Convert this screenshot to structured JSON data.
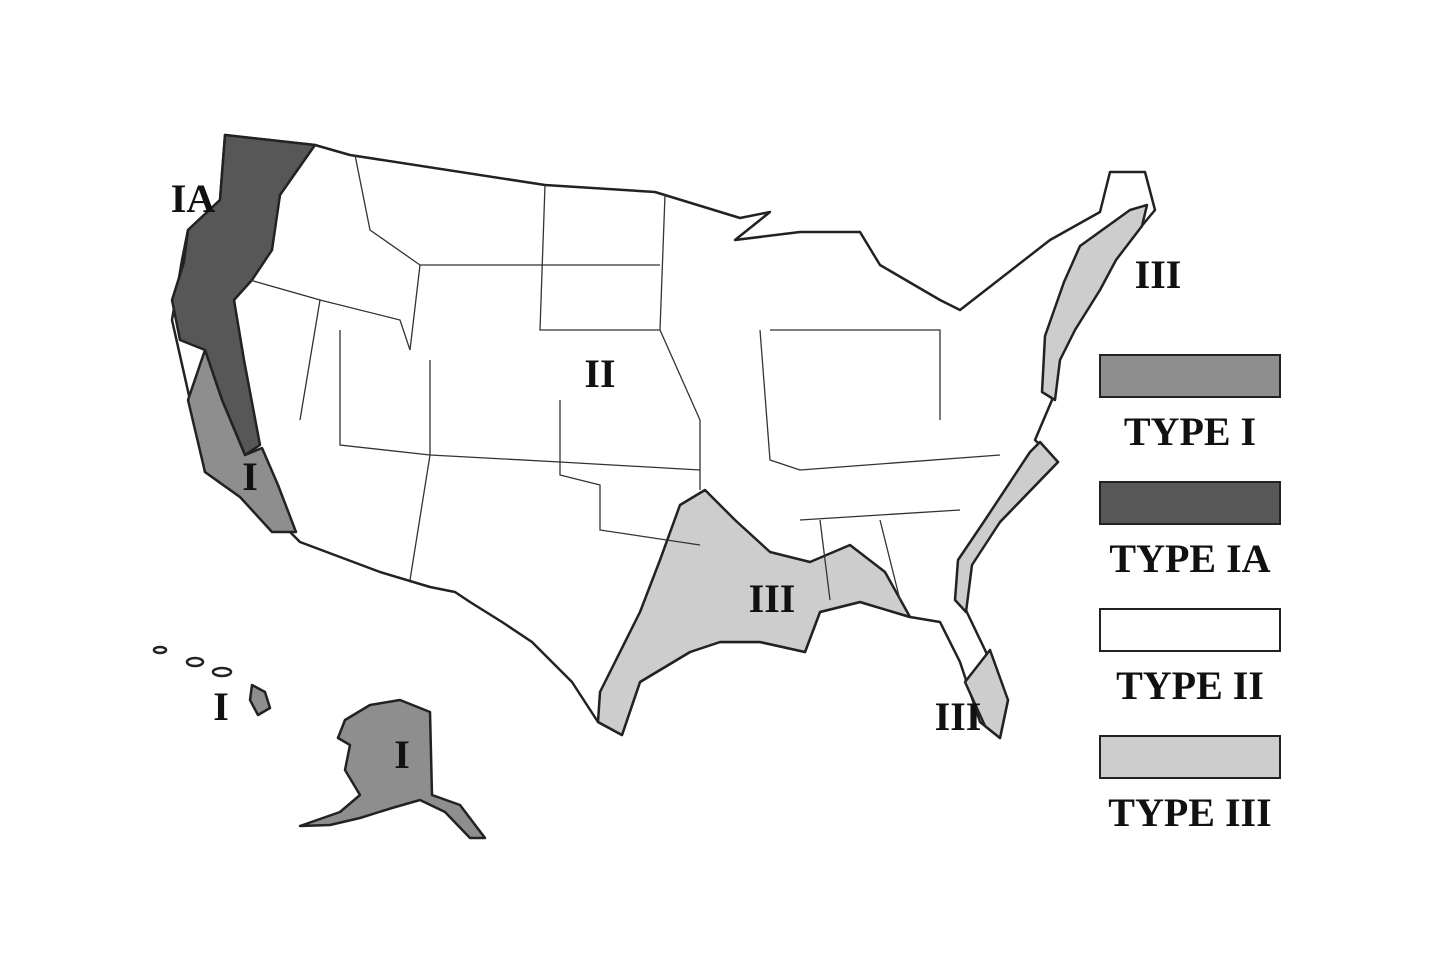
{
  "map": {
    "labels": [
      {
        "text": "IA"
      },
      {
        "text": "I"
      },
      {
        "text": "II"
      },
      {
        "text": "III"
      },
      {
        "text": "III"
      },
      {
        "text": "III"
      },
      {
        "text": "I"
      },
      {
        "text": "I"
      }
    ]
  },
  "legend": [
    {
      "label": "TYPE I",
      "color": "#8e8e8e"
    },
    {
      "label": "TYPE IA",
      "color": "#575757"
    },
    {
      "label": "TYPE II",
      "color": "#ffffff"
    },
    {
      "label": "TYPE III",
      "color": "#cdcdcd"
    }
  ]
}
